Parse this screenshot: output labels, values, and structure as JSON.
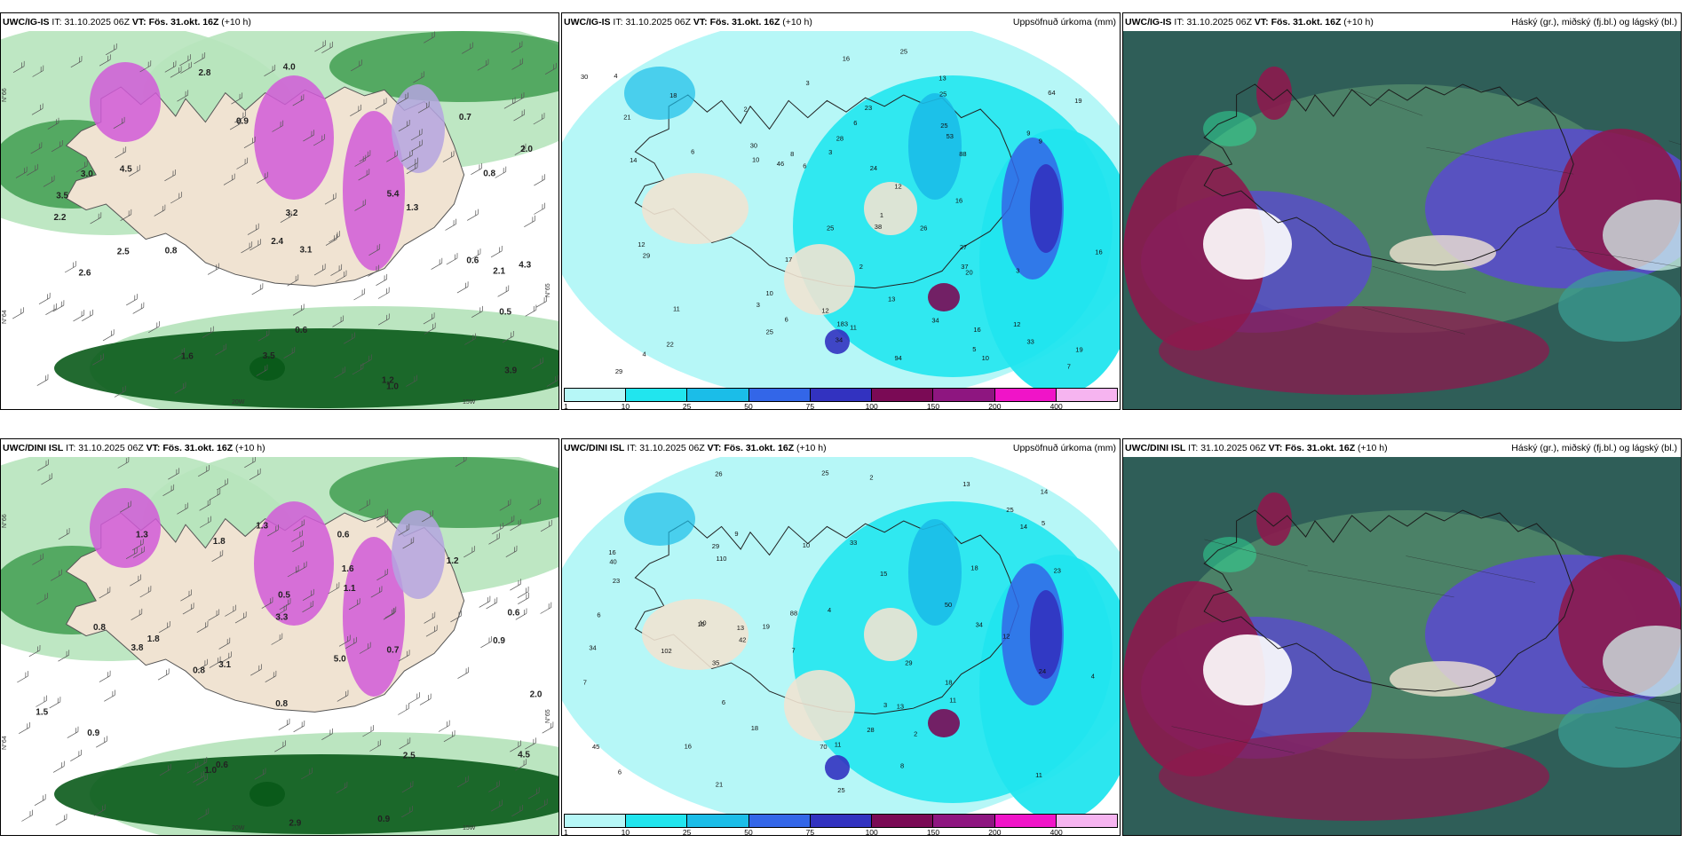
{
  "panels": [
    {
      "id": "p1",
      "model": "UWC/IG-IS",
      "init_label": "IT:",
      "init": "31.10.2025 06Z",
      "valid_label": "VT:",
      "valid": "Fös. 31.okt. 16Z",
      "lead": "(+10 h)",
      "right_title": "",
      "type": "precip-wind",
      "values": [
        "0.5",
        "0.6",
        "0.7",
        "0.8",
        "0.9",
        "1.2",
        "2.0",
        "2.5",
        "3.1",
        "3.5",
        "4.0",
        "5.4",
        "1.3",
        "1.0",
        "0.6",
        "3.0",
        "2.6",
        "2.8",
        "3.9",
        "3.5",
        "2.4",
        "3.2",
        "2.1",
        "0.8",
        "4.5",
        "4.3",
        "2.2",
        "1.6"
      ],
      "axis_labels": [
        "N°66",
        "N°64",
        "20W",
        "15W",
        "N°65"
      ]
    },
    {
      "id": "p2",
      "model": "UWC/IG-IS",
      "init_label": "IT:",
      "init": "31.10.2025 06Z",
      "valid_label": "VT:",
      "valid": "Fös. 31.okt. 16Z",
      "lead": "(+10 h)",
      "right_title": "Uppsöfnuð úrkoma (mm)",
      "type": "accum",
      "values": [
        "4",
        "3",
        "1",
        "2",
        "3",
        "25",
        "12",
        "13",
        "16",
        "3",
        "7",
        "10",
        "6",
        "16",
        "34",
        "30",
        "37",
        "29",
        "25",
        "19",
        "30",
        "22",
        "34",
        "26",
        "20",
        "25",
        "8",
        "6",
        "9",
        "13",
        "33",
        "17",
        "23",
        "29",
        "38",
        "94",
        "183",
        "88",
        "14",
        "12",
        "6",
        "10",
        "2",
        "25",
        "16",
        "46",
        "28",
        "11",
        "16",
        "19",
        "21",
        "3",
        "4",
        "5",
        "11",
        "18",
        "9",
        "6",
        "12",
        "27",
        "24",
        "25",
        "53",
        "64",
        "10",
        "12"
      ],
      "legend_ticks": [
        "1",
        "10",
        "25",
        "50",
        "75",
        "100",
        "150",
        "200",
        "400"
      ]
    },
    {
      "id": "p3",
      "model": "UWC/IG-IS",
      "init_label": "IT:",
      "init": "31.10.2025 06Z",
      "valid_label": "VT:",
      "valid": "Fös. 31.okt. 16Z",
      "lead": "(+10 h)",
      "right_title": "Háský (gr.), miðský (fj.bl.) og lágský (bl.)",
      "type": "clouds"
    },
    {
      "id": "p4",
      "model": "UWC/DINI ISL",
      "init_label": "IT:",
      "init": "31.10.2025 06Z",
      "valid_label": "VT:",
      "valid": "Fös. 31.okt. 16Z",
      "lead": "(+10 h)",
      "right_title": "",
      "type": "precip-wind",
      "values": [
        "1.0",
        "0.5",
        "0.9",
        "0.6",
        "0.8",
        "0.7",
        "1.6",
        "3.1",
        "3.3",
        "2.5",
        "2.0",
        "5.0",
        "1.1",
        "1.3",
        "1.8",
        "0.6",
        "0.8",
        "0.9",
        "1.5",
        "0.6",
        "3.8",
        "1.3",
        "0.8",
        "4.5",
        "2.9",
        "1.2",
        "0.9",
        "1.8"
      ],
      "axis_labels": [
        "N°66",
        "N°64",
        "20W",
        "15W",
        "N°65"
      ]
    },
    {
      "id": "p5",
      "model": "UWC/DINI ISL",
      "init_label": "IT:",
      "init": "31.10.2025 06Z",
      "valid_label": "VT:",
      "valid": "Fös. 31.okt. 16Z",
      "lead": "(+10 h)",
      "right_title": "Uppsöfnuð úrkoma (mm)",
      "type": "accum",
      "values": [
        "2",
        "4",
        "2",
        "3",
        "19",
        "29",
        "11",
        "14",
        "11",
        "13",
        "7",
        "10",
        "6",
        "29",
        "33",
        "25",
        "34",
        "23",
        "15",
        "35",
        "13",
        "24",
        "6",
        "18",
        "23",
        "28",
        "45",
        "70",
        "34",
        "102",
        "88",
        "12",
        "16",
        "15",
        "26",
        "40",
        "110",
        "50",
        "25",
        "14",
        "25",
        "18",
        "42",
        "5",
        "7",
        "4",
        "9",
        "18",
        "16",
        "6",
        "21",
        "13",
        "10",
        "11",
        "8"
      ],
      "legend_ticks": [
        "1",
        "10",
        "25",
        "50",
        "75",
        "100",
        "150",
        "200",
        "400"
      ]
    },
    {
      "id": "p6",
      "model": "UWC/DINI ISL",
      "init_label": "IT:",
      "init": "31.10.2025 06Z",
      "valid_label": "VT:",
      "valid": "Fös. 31.okt. 16Z",
      "lead": "(+10 h)",
      "right_title": "Háský (gr.), miðský (fj.bl.) og lágský (bl.)",
      "type": "clouds"
    }
  ],
  "colors": {
    "land": "#f0e3d2",
    "green_dark": "#0a5a1a",
    "green_mid": "#3a9a4a",
    "green_light": "#b7e4bd",
    "magenta": "#d15ad8",
    "lavender": "#b5a5e0",
    "cyan_light": "#b6f7f7",
    "cyan": "#21e5ee",
    "cyan_deep": "#1bbde8",
    "blue": "#3366e8",
    "blue_dark": "#3232c0",
    "maroon": "#7a0a55",
    "purple": "#8e1680",
    "pink": "#f014c8",
    "pink_light": "#f6b4f0",
    "teal_bg": "#2f5e58",
    "cloud_green": "#5f9a72",
    "cloud_blue": "#5a4ad0",
    "cloud_red": "#8c1a4e",
    "cloud_aqua": "#2fe09a"
  }
}
